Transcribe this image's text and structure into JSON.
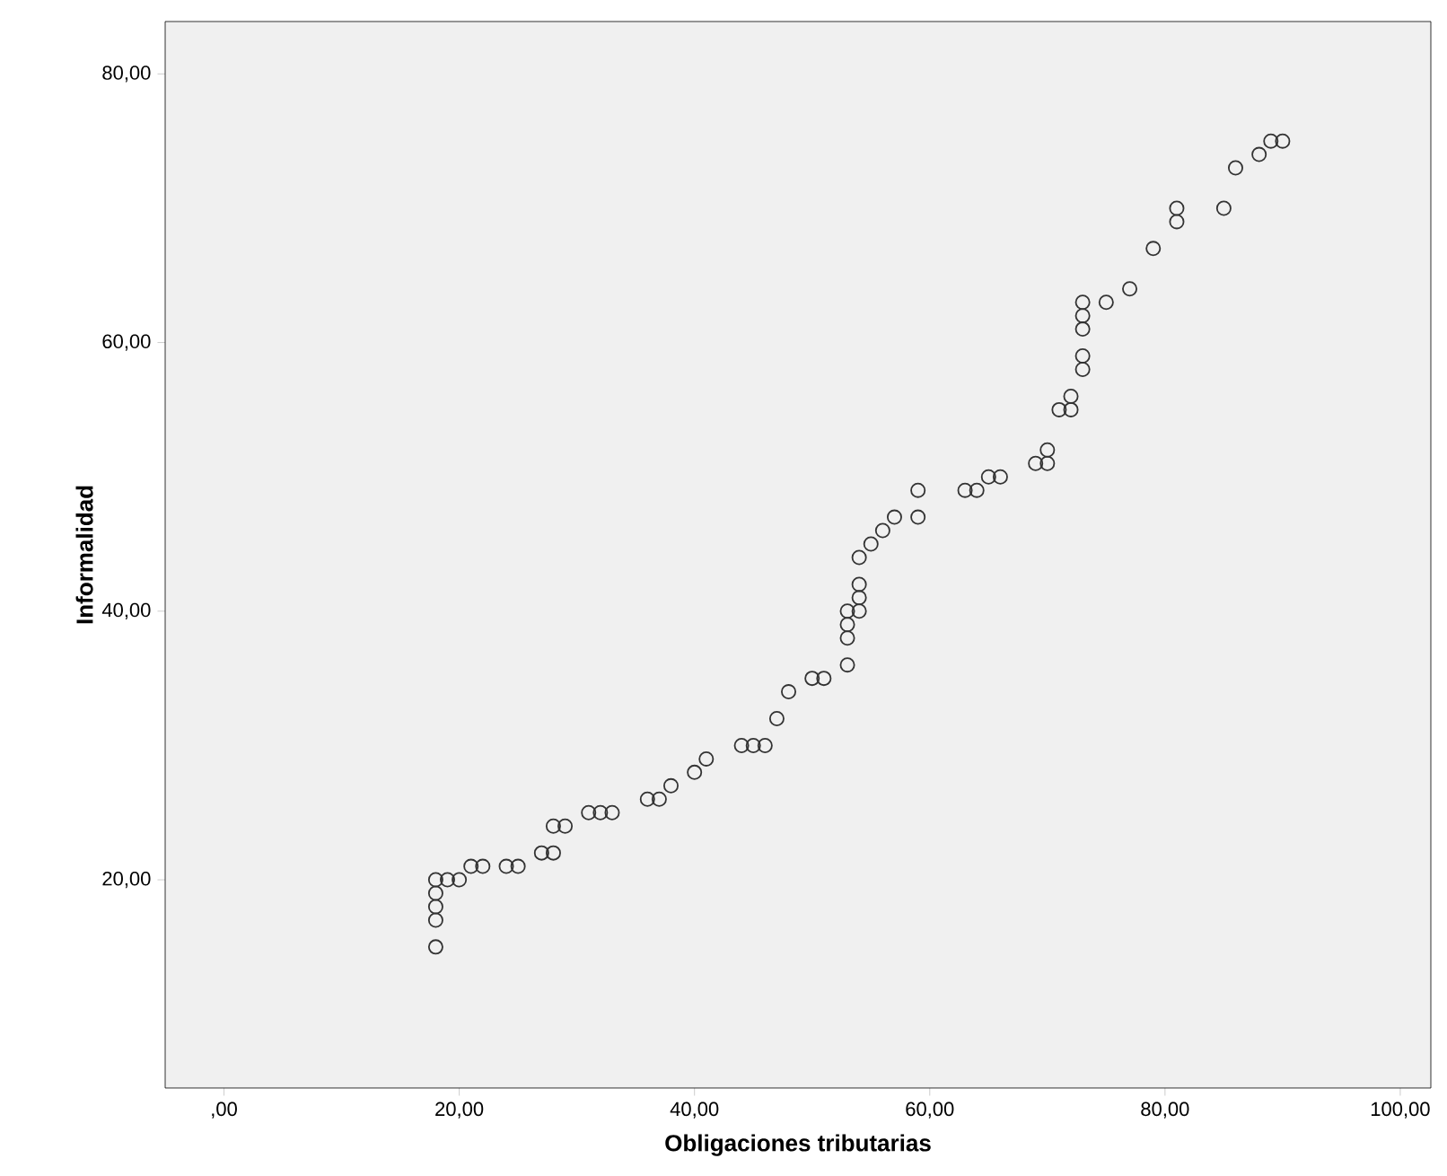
{
  "chart_data": {
    "type": "scatter",
    "xlabel": "Obligaciones tributarias",
    "ylabel": "Informalidad",
    "x": [
      18,
      18,
      18,
      18,
      18,
      19,
      20,
      21,
      22,
      24,
      25,
      27,
      28,
      28,
      29,
      31,
      32,
      33,
      36,
      37,
      38,
      40,
      41,
      44,
      45,
      46,
      47,
      48,
      50,
      51,
      53,
      53,
      53,
      53,
      54,
      54,
      54,
      54,
      55,
      56,
      57,
      59,
      59,
      63,
      64,
      65,
      66,
      69,
      70,
      70,
      71,
      72,
      72,
      73,
      73,
      73,
      73,
      73,
      75,
      77,
      79,
      81,
      81,
      85,
      86,
      88,
      89,
      90
    ],
    "values": [
      15,
      17,
      18,
      19,
      20,
      20,
      20,
      21,
      21,
      21,
      21,
      22,
      22,
      24,
      24,
      25,
      25,
      25,
      26,
      26,
      27,
      28,
      29,
      30,
      30,
      30,
      32,
      34,
      35,
      35,
      36,
      38,
      39,
      40,
      40,
      41,
      42,
      44,
      45,
      46,
      47,
      47,
      49,
      49,
      49,
      50,
      50,
      51,
      51,
      52,
      55,
      55,
      56,
      58,
      59,
      61,
      62,
      63,
      63,
      64,
      67,
      69,
      70,
      70,
      73,
      74,
      75,
      75
    ],
    "color": "#333333",
    "marker": "circle",
    "grid": false,
    "xlim": [
      -5,
      102.6
    ],
    "ylim": [
      4.5,
      83.9
    ],
    "xticks": [
      {
        "value": 0,
        "label": ",00"
      },
      {
        "value": 20,
        "label": "20,00"
      },
      {
        "value": 40,
        "label": "40,00"
      },
      {
        "value": 60,
        "label": "60,00"
      },
      {
        "value": 80,
        "label": "80,00"
      },
      {
        "value": 100,
        "label": "100,00"
      }
    ],
    "yticks": [
      {
        "value": 20,
        "label": "20,00"
      },
      {
        "value": 40,
        "label": "40,00"
      },
      {
        "value": 60,
        "label": "60,00"
      },
      {
        "value": 80,
        "label": "80,00"
      }
    ]
  }
}
